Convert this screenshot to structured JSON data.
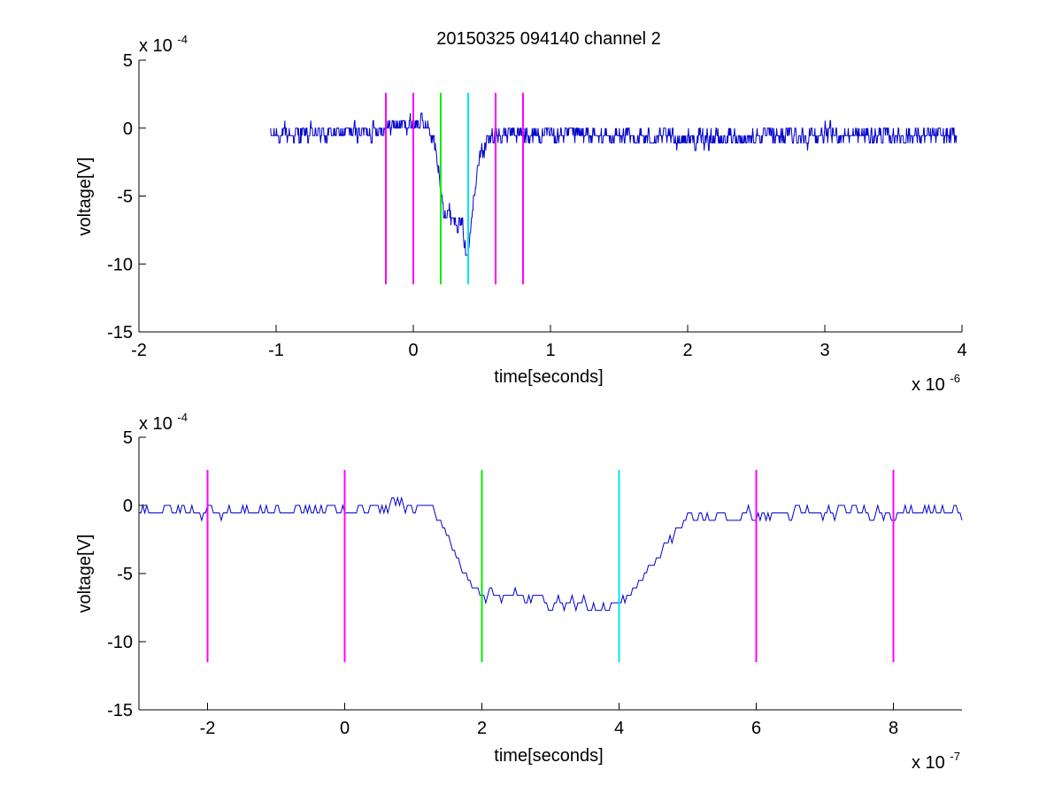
{
  "figure": {
    "title": "20150325 094140 channel 2"
  },
  "chart_data": [
    {
      "type": "line",
      "title": "20150325 094140 channel 2",
      "xlabel": "time[seconds]",
      "ylabel": "voltage[V]",
      "x_exponent_base": "x 10",
      "x_exponent_power": "-6",
      "y_exponent_base": "x 10",
      "y_exponent_power": "-4",
      "xlim": [
        -2,
        4
      ],
      "ylim": [
        -15,
        5
      ],
      "xticks": [
        -2,
        -1,
        0,
        1,
        2,
        3,
        4
      ],
      "yticks": [
        -15,
        -10,
        -5,
        0,
        5
      ],
      "grid": false,
      "signal_color": "#0000cc",
      "signal_anchors": [
        [
          -1.04,
          -0.5
        ],
        [
          -0.8,
          -0.5
        ],
        [
          -0.3,
          -0.2
        ],
        [
          -0.1,
          0.3
        ],
        [
          0.08,
          0.4
        ],
        [
          0.15,
          -0.8
        ],
        [
          0.18,
          -3.0
        ],
        [
          0.22,
          -5.8
        ],
        [
          0.3,
          -6.6
        ],
        [
          0.36,
          -7.2
        ],
        [
          0.39,
          -9.8
        ],
        [
          0.41,
          -7.5
        ],
        [
          0.45,
          -4.0
        ],
        [
          0.5,
          -1.6
        ],
        [
          0.58,
          -0.5
        ],
        [
          1.0,
          -0.5
        ],
        [
          2.0,
          -0.8
        ],
        [
          3.0,
          -0.5
        ],
        [
          3.96,
          -0.6
        ]
      ],
      "signal_noise": 1.0,
      "markers": [
        {
          "x": -0.2,
          "color": "#ff00ff"
        },
        {
          "x": 0.0,
          "color": "#ff00ff"
        },
        {
          "x": 0.2,
          "color": "#00ee00"
        },
        {
          "x": 0.4,
          "color": "#00e5ee"
        },
        {
          "x": 0.6,
          "color": "#ff00ff"
        },
        {
          "x": 0.8,
          "color": "#ff00ff"
        }
      ],
      "marker_ymin": -11.5,
      "marker_ymax": 2.6
    },
    {
      "type": "line",
      "title": "",
      "xlabel": "time[seconds]",
      "ylabel": "voltage[V]",
      "x_exponent_base": "x 10",
      "x_exponent_power": "-7",
      "y_exponent_base": "x 10",
      "y_exponent_power": "-4",
      "xlim": [
        -3,
        9
      ],
      "ylim": [
        -15,
        5
      ],
      "xticks": [
        -2,
        0,
        2,
        4,
        6,
        8
      ],
      "yticks": [
        -15,
        -10,
        -5,
        0,
        5
      ],
      "grid": false,
      "signal_color": "#0000cc",
      "signal_anchors": [
        [
          -3.0,
          -0.2
        ],
        [
          -2.0,
          -0.5
        ],
        [
          -1.0,
          -0.3
        ],
        [
          0.0,
          -0.4
        ],
        [
          1.0,
          0.2
        ],
        [
          1.3,
          -0.3
        ],
        [
          1.5,
          -2.2
        ],
        [
          1.7,
          -4.8
        ],
        [
          2.0,
          -6.3
        ],
        [
          2.4,
          -6.6
        ],
        [
          3.0,
          -7.0
        ],
        [
          3.5,
          -7.2
        ],
        [
          3.8,
          -8.0
        ],
        [
          4.0,
          -7.3
        ],
        [
          4.3,
          -5.5
        ],
        [
          4.6,
          -3.5
        ],
        [
          4.8,
          -2.0
        ],
        [
          5.0,
          -1.0
        ],
        [
          6.0,
          -0.7
        ],
        [
          7.0,
          -0.6
        ],
        [
          8.0,
          -0.4
        ],
        [
          9.0,
          -0.4
        ]
      ],
      "signal_noise": 0.75,
      "markers": [
        {
          "x": -2,
          "color": "#ff00ff"
        },
        {
          "x": 0,
          "color": "#ff00ff"
        },
        {
          "x": 2,
          "color": "#00ee00"
        },
        {
          "x": 4,
          "color": "#00e5ee"
        },
        {
          "x": 6,
          "color": "#ff00ff"
        },
        {
          "x": 8,
          "color": "#ff00ff"
        }
      ],
      "marker_ymin": -11.5,
      "marker_ymax": 2.6
    }
  ]
}
